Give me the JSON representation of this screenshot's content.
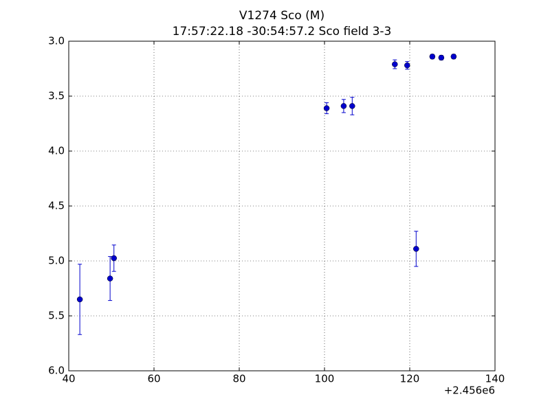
{
  "chart_data": {
    "type": "errorbar",
    "title": "V1274 Sco  (M)",
    "subtitle": "17:57:22.18 -30:54:57.2 Sco field 3-3",
    "x_offset_label": "+2.456e6",
    "series": [
      {
        "color": "#0000cc",
        "x": [
          42.6,
          49.7,
          50.6,
          100.5,
          104.5,
          106.5,
          116.5,
          119.4,
          121.5,
          125.3,
          127.4,
          130.3
        ],
        "values": [
          5.35,
          5.16,
          4.975,
          3.61,
          3.59,
          3.59,
          3.21,
          3.22,
          4.89,
          3.14,
          3.15,
          3.14
        ],
        "errors": [
          0.32,
          0.2,
          0.12,
          0.05,
          0.06,
          0.08,
          0.04,
          0.035,
          0.16,
          0.02,
          0.02,
          0.02
        ]
      }
    ],
    "xlim": [
      40,
      140
    ],
    "xticks": [
      40,
      60,
      80,
      100,
      120,
      140
    ],
    "ylim": [
      6.0,
      3.0
    ],
    "yticks": [
      {
        "value": 3.0,
        "label": "3.0"
      },
      {
        "value": 3.5,
        "label": "3.5"
      },
      {
        "value": 4.0,
        "label": "4.0"
      },
      {
        "value": 4.5,
        "label": "4.5"
      },
      {
        "value": 5.0,
        "label": "5.0"
      },
      {
        "value": 5.5,
        "label": "5.5"
      },
      {
        "value": 6.0,
        "label": "6.0"
      }
    ],
    "grid": true
  }
}
